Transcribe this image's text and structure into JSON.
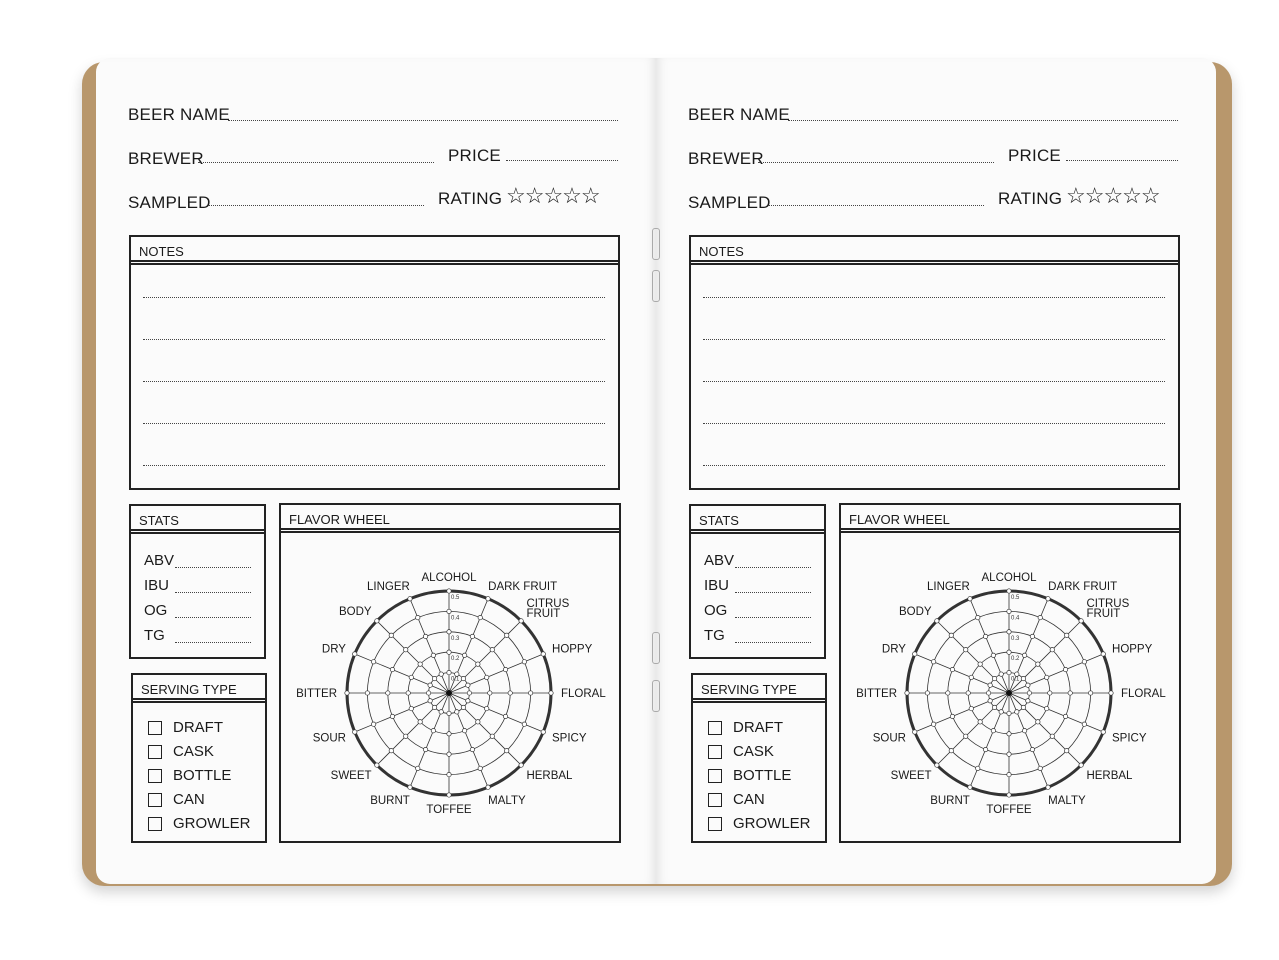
{
  "pages": [
    {
      "beer_name": "BEER NAME",
      "brewer": "BREWER",
      "price": "PRICE",
      "sampled": "SAMPLED",
      "rating": "RATING",
      "stars": "☆☆☆☆☆",
      "notes": "NOTES",
      "stats": {
        "title": "STATS",
        "items": [
          "ABV",
          "IBU",
          "OG",
          "TG"
        ]
      },
      "flavor_wheel": "FLAVOR WHEEL",
      "serving": {
        "title": "SERVING TYPE",
        "items": [
          "DRAFT",
          "CASK",
          "BOTTLE",
          "CAN",
          "GROWLER"
        ]
      }
    },
    {
      "beer_name": "BEER NAME",
      "brewer": "BREWER",
      "price": "PRICE",
      "sampled": "SAMPLED",
      "rating": "RATING",
      "stars": "☆☆☆☆☆",
      "notes": "NOTES",
      "stats": {
        "title": "STATS",
        "items": [
          "ABV",
          "IBU",
          "OG",
          "TG"
        ]
      },
      "flavor_wheel": "FLAVOR WHEEL",
      "serving": {
        "title": "SERVING TYPE",
        "items": [
          "DRAFT",
          "CASK",
          "BOTTLE",
          "CAN",
          "GROWLER"
        ]
      }
    }
  ],
  "wheel": {
    "labels": [
      "ALCOHOL",
      "DARK FRUIT",
      "CITRUS FRUIT",
      "HOPPY",
      "FLORAL",
      "SPICY",
      "HERBAL",
      "MALTY",
      "TOFFEE",
      "BURNT",
      "SWEET",
      "SOUR",
      "BITTER",
      "DRY",
      "BODY",
      "LINGER"
    ],
    "scale": [
      "0.1",
      "0.2",
      "0.3",
      "0.4",
      "0.5"
    ]
  },
  "colors": {
    "cover": "#b8976c",
    "paper": "#fbfbfb",
    "ink": "#1a1a1a"
  }
}
